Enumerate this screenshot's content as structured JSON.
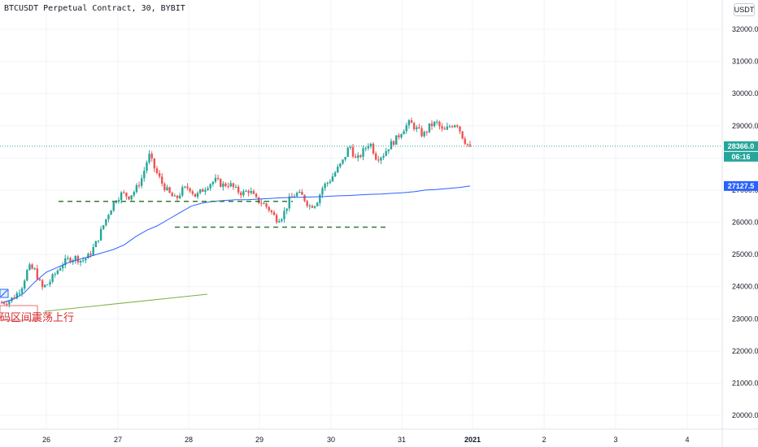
{
  "header": {
    "title": "BTCUSDT Perpetual Contract, 30, BYBIT",
    "currency": "USDT"
  },
  "annotation": {
    "text": "码区间震荡上行"
  },
  "price_tags": {
    "last_price": "28366.0",
    "countdown": "06:16",
    "vwap": "27127.5"
  },
  "colors": {
    "up": "#26a69a",
    "down": "#ef5350",
    "grid": "#f0f3fa",
    "vwap": "#2962ff",
    "last_line": "#26a69a",
    "support": "#2e7d32",
    "trendline": "#7cb342"
  },
  "chart_data": {
    "type": "candlestick",
    "y_axis": {
      "min": 19700,
      "max": 32500,
      "ticks": [
        "32000.0",
        "31000.0",
        "30000.0",
        "29000.0",
        "28000.0",
        "27000.0",
        "26000.0",
        "25000.0",
        "24000.0",
        "23000.0",
        "22000.0",
        "21000.0",
        "20000.0"
      ],
      "tick_values": [
        32000,
        31000,
        30000,
        29000,
        28000,
        27000,
        26000,
        25000,
        24000,
        23000,
        22000,
        21000,
        20000
      ]
    },
    "x_axis": {
      "labels": [
        "26",
        "27",
        "28",
        "29",
        "30",
        "31",
        "2021",
        "2",
        "3",
        "4"
      ],
      "bold_labels": [
        "2021"
      ]
    },
    "series": [
      {
        "name": "close",
        "path_points": [
          23500,
          23550,
          23700,
          24000,
          24600,
          24500,
          23950,
          24100,
          24400,
          24700,
          24850,
          24900,
          24800,
          24950,
          25300,
          25800,
          26300,
          26700,
          26900,
          26800,
          27000,
          27400,
          28100,
          27600,
          27200,
          26900,
          26700,
          27000,
          27100,
          26800,
          27000,
          27200,
          27300,
          27150,
          27200,
          27000,
          26900,
          27000,
          26700,
          26600,
          26400,
          26100,
          26200,
          26700,
          26900,
          26800,
          26500,
          26600,
          27100,
          27300,
          27600,
          27900,
          28400,
          27900,
          28200,
          28500,
          28000,
          28100,
          28400,
          28600,
          28900,
          29100,
          28900,
          28700,
          29000,
          29100,
          28800,
          29000,
          29100,
          28600,
          28300
        ]
      },
      {
        "name": "vwap",
        "path_points": [
          23500,
          23600,
          23800,
          24150,
          24450,
          24600,
          24750,
          24850,
          24950,
          25050,
          25150,
          25300,
          25550,
          25750,
          25900,
          26100,
          26300,
          26500,
          26600,
          26650,
          26680,
          26700,
          26700,
          26720,
          26740,
          26760,
          26770,
          26780,
          26790,
          26800,
          26820,
          26830,
          26850,
          26870,
          26880,
          26900,
          26920,
          26950,
          27000,
          27020,
          27050,
          27080,
          27127.5
        ]
      }
    ],
    "last_value": 28366.0,
    "support_lines": [
      26650,
      25850
    ]
  }
}
